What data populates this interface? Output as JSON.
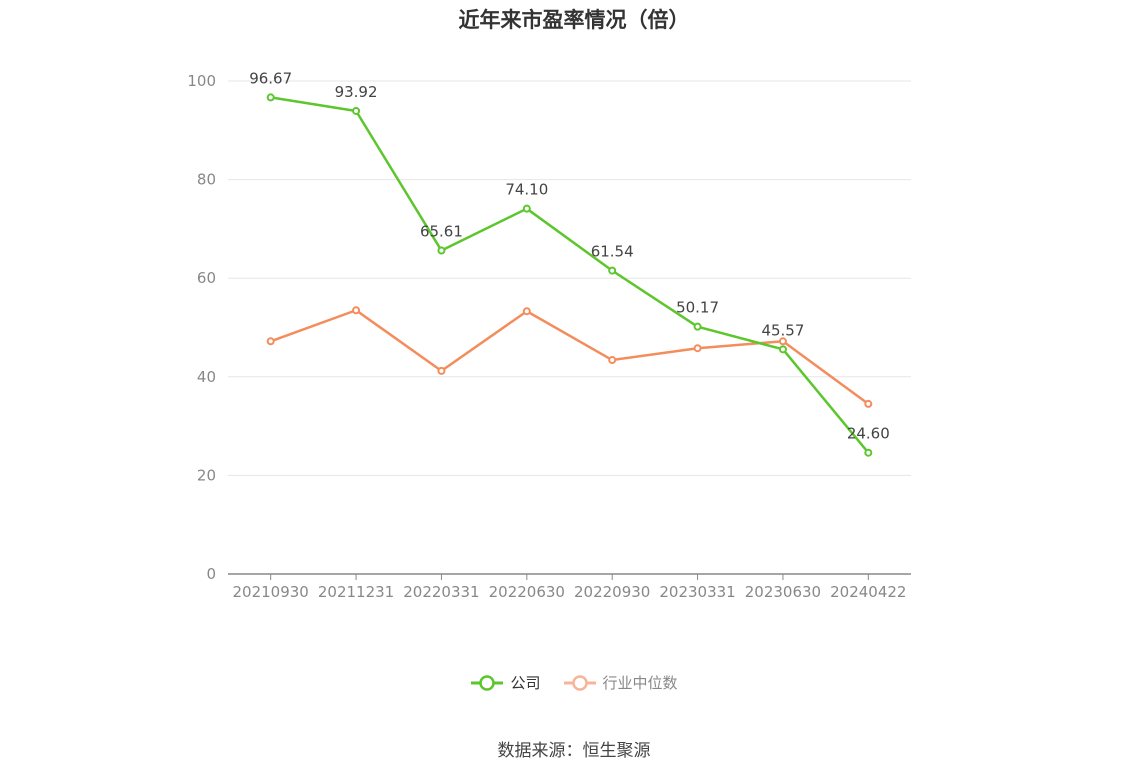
{
  "title": "近年来市盈率情况（倍）",
  "source": "数据来源：恒生聚源",
  "colors": {
    "company": "#5cc62d",
    "industry": "#f48c5c",
    "industry_legend": "#f7b49a",
    "grid": "#e6e6e6",
    "axis": "#888888"
  },
  "chart_data": {
    "type": "line",
    "title": "近年来市盈率情况（倍）",
    "xlabel": "",
    "ylabel": "",
    "ylim": [
      0,
      100
    ],
    "yticks": [
      0,
      20,
      40,
      60,
      80,
      100
    ],
    "categories": [
      "20210930",
      "20211231",
      "20220331",
      "20220630",
      "20220930",
      "20230331",
      "20230630",
      "20240422"
    ],
    "series": [
      {
        "name": "公司",
        "values": [
          96.67,
          93.92,
          65.61,
          74.1,
          61.54,
          50.17,
          45.57,
          24.6
        ],
        "labels": [
          "96.67",
          "93.92",
          "65.61",
          "74.10",
          "61.54",
          "50.17",
          "45.57",
          "24.60"
        ]
      },
      {
        "name": "行业中位数",
        "values": [
          47.2,
          53.5,
          41.2,
          53.3,
          43.4,
          45.8,
          47.2,
          34.5
        ]
      }
    ],
    "grid": true,
    "legend": "bottom-center"
  }
}
